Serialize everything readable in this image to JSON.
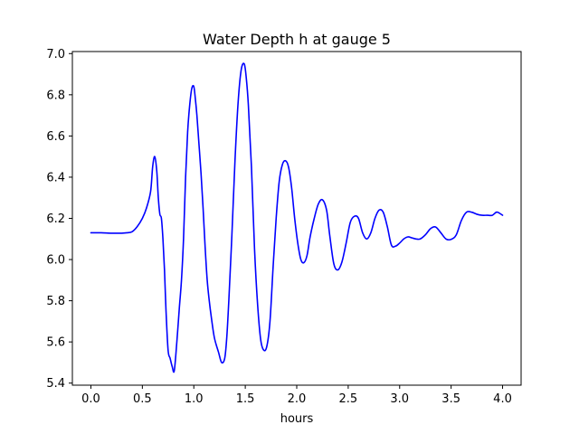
{
  "chart_data": {
    "type": "line",
    "title": "Water Depth h at gauge 5",
    "xlabel": "hours",
    "ylabel": "",
    "xlim": [
      -0.18,
      4.18
    ],
    "ylim": [
      5.39,
      7.01
    ],
    "xticks": [
      0.0,
      0.5,
      1.0,
      1.5,
      2.0,
      2.5,
      3.0,
      3.5,
      4.0
    ],
    "xtick_labels": [
      "0.0",
      "0.5",
      "1.0",
      "1.5",
      "2.0",
      "2.5",
      "3.0",
      "3.5",
      "4.0"
    ],
    "yticks": [
      5.4,
      5.6,
      5.8,
      6.0,
      6.2,
      6.4,
      6.6,
      6.8,
      7.0
    ],
    "ytick_labels": [
      "5.4",
      "5.6",
      "5.8",
      "6.0",
      "6.2",
      "6.4",
      "6.6",
      "6.8",
      "7.0"
    ],
    "grid": false,
    "legend": "none",
    "series": [
      {
        "color": "#0000ff",
        "x": [
          0.0,
          0.1,
          0.2,
          0.3,
          0.35,
          0.4,
          0.45,
          0.5,
          0.54,
          0.58,
          0.6,
          0.62,
          0.64,
          0.655,
          0.67,
          0.685,
          0.7,
          0.715,
          0.73,
          0.75,
          0.77,
          0.79,
          0.81,
          0.835,
          0.86,
          0.88,
          0.9,
          0.92,
          0.94,
          0.96,
          0.98,
          1.0,
          1.015,
          1.03,
          1.05,
          1.07,
          1.09,
          1.11,
          1.13,
          1.15,
          1.17,
          1.2,
          1.24,
          1.27,
          1.3,
          1.32,
          1.34,
          1.37,
          1.4,
          1.43,
          1.46,
          1.49,
          1.51,
          1.53,
          1.56,
          1.59,
          1.62,
          1.65,
          1.68,
          1.71,
          1.74,
          1.77,
          1.8,
          1.83,
          1.86,
          1.89,
          1.92,
          1.95,
          1.98,
          2.01,
          2.04,
          2.07,
          2.1,
          2.13,
          2.17,
          2.21,
          2.25,
          2.29,
          2.32,
          2.36,
          2.4,
          2.44,
          2.48,
          2.52,
          2.56,
          2.6,
          2.64,
          2.68,
          2.72,
          2.76,
          2.8,
          2.84,
          2.88,
          2.92,
          2.96,
          3.0,
          3.04,
          3.08,
          3.12,
          3.16,
          3.2,
          3.25,
          3.3,
          3.35,
          3.4,
          3.45,
          3.5,
          3.55,
          3.6,
          3.65,
          3.7,
          3.75,
          3.8,
          3.85,
          3.9,
          3.94,
          3.97,
          4.0
        ],
        "y": [
          6.13,
          6.13,
          6.128,
          6.128,
          6.13,
          6.135,
          6.16,
          6.2,
          6.25,
          6.33,
          6.45,
          6.5,
          6.43,
          6.3,
          6.22,
          6.2,
          6.1,
          5.95,
          5.75,
          5.56,
          5.52,
          5.48,
          5.46,
          5.6,
          5.77,
          5.9,
          6.1,
          6.4,
          6.62,
          6.75,
          6.83,
          6.84,
          6.78,
          6.7,
          6.56,
          6.42,
          6.25,
          6.06,
          5.9,
          5.8,
          5.72,
          5.62,
          5.55,
          5.5,
          5.52,
          5.62,
          5.8,
          6.12,
          6.48,
          6.76,
          6.92,
          6.95,
          6.88,
          6.75,
          6.45,
          6.05,
          5.78,
          5.61,
          5.56,
          5.58,
          5.7,
          5.96,
          6.2,
          6.38,
          6.46,
          6.48,
          6.45,
          6.35,
          6.2,
          6.08,
          6.0,
          5.985,
          6.02,
          6.11,
          6.2,
          6.27,
          6.29,
          6.24,
          6.12,
          5.98,
          5.95,
          5.99,
          6.08,
          6.18,
          6.21,
          6.2,
          6.13,
          6.1,
          6.13,
          6.2,
          6.24,
          6.23,
          6.16,
          6.07,
          6.065,
          6.08,
          6.1,
          6.11,
          6.105,
          6.1,
          6.1,
          6.12,
          6.15,
          6.158,
          6.13,
          6.1,
          6.098,
          6.12,
          6.19,
          6.23,
          6.23,
          6.22,
          6.215,
          6.215,
          6.215,
          6.23,
          6.225,
          6.215
        ]
      }
    ]
  }
}
